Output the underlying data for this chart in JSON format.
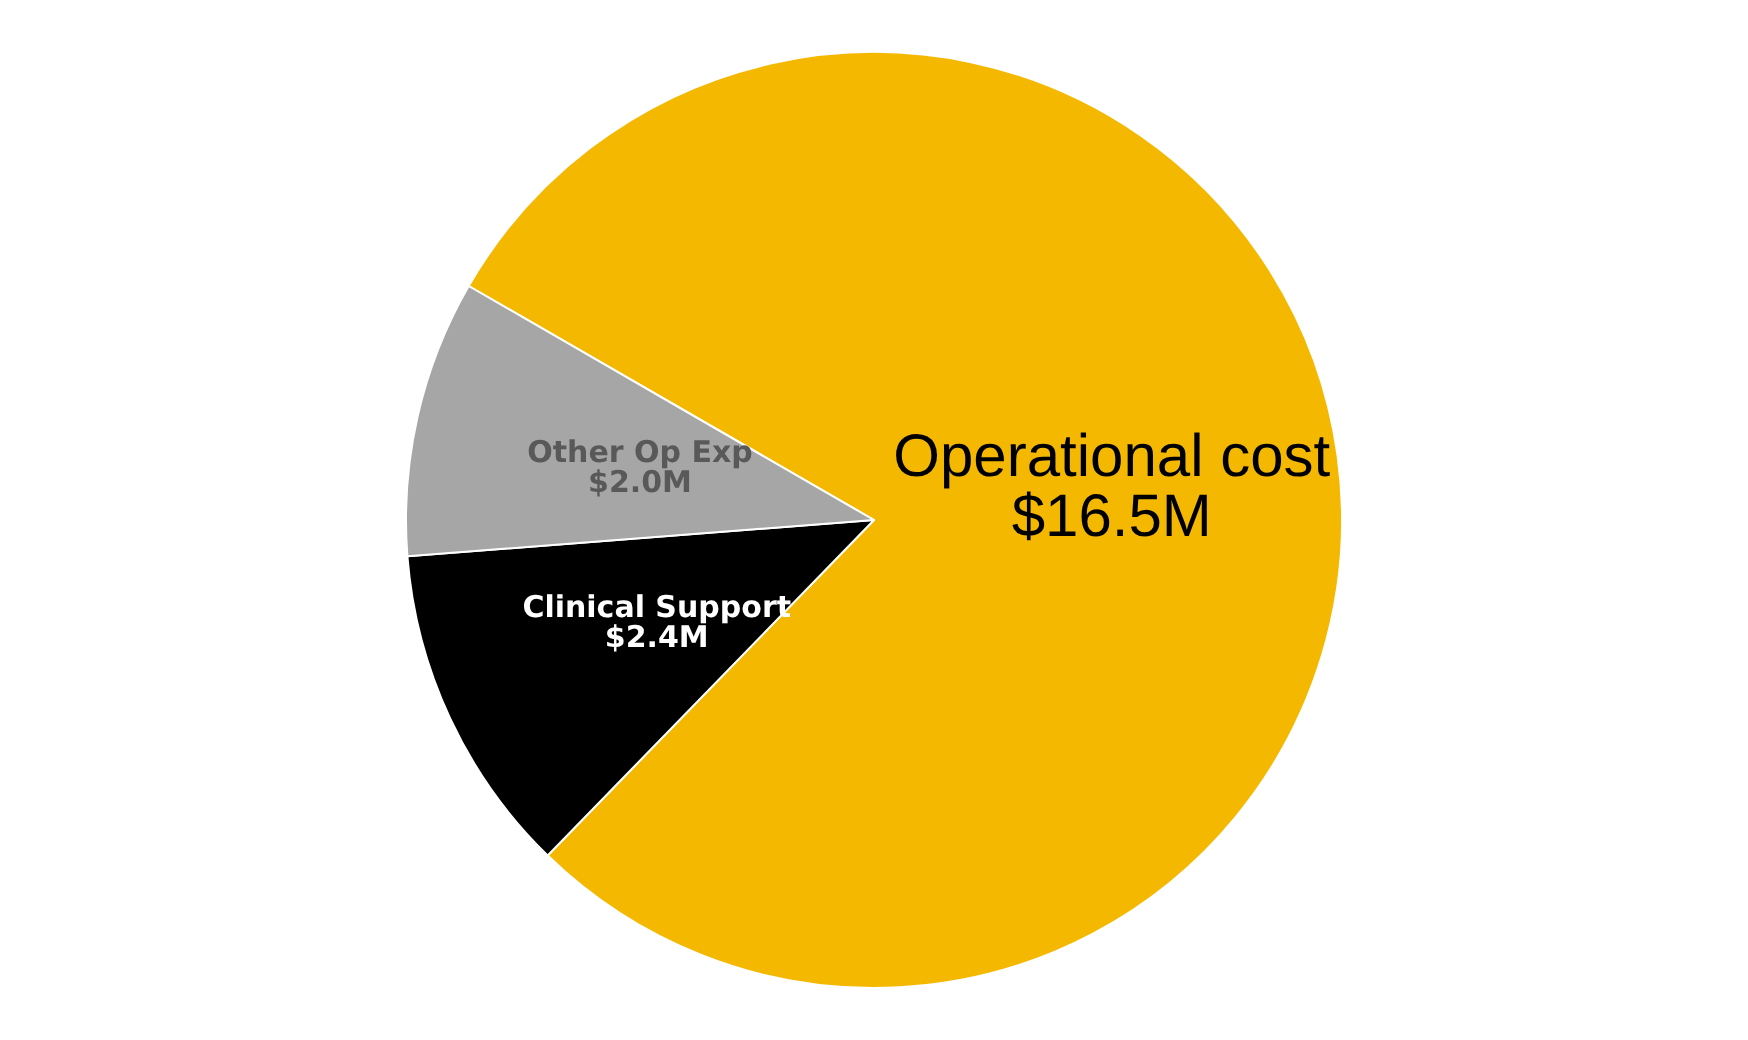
{
  "chart_data": {
    "type": "pie",
    "categories": [
      "Operational cost",
      "Clinical Support",
      "Other Op Exp"
    ],
    "values": [
      16.5,
      2.4,
      2.0
    ],
    "value_labels": [
      "$16.5M",
      "$2.4M",
      "$2.0M"
    ],
    "colors": [
      "#f5b800",
      "#000000",
      "#a6a6a6"
    ],
    "legend": false
  }
}
